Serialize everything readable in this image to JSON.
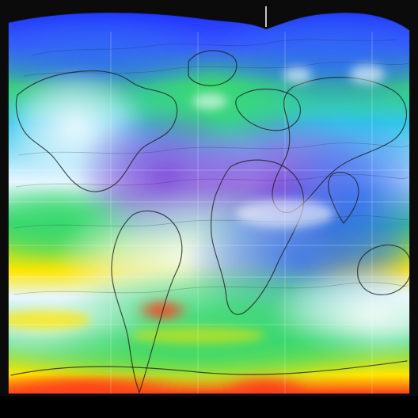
{
  "map": {
    "kind": "false-color world field map (no printed text)",
    "colors": {
      "frame_bg": "#0b0b0b",
      "ocean_base": "#33c6ea",
      "high": "#e7f7ff",
      "mid_green": "#39d86e",
      "violet": "#7a43d9",
      "blue": "#2f6cf2",
      "warm": "#ffe600",
      "hot": "#ff3b1a",
      "coast": "#1b1b1b"
    },
    "icons": [
      "world-map-outline-icon",
      "graticule-lines-icon",
      "center-tick-icon"
    ]
  }
}
